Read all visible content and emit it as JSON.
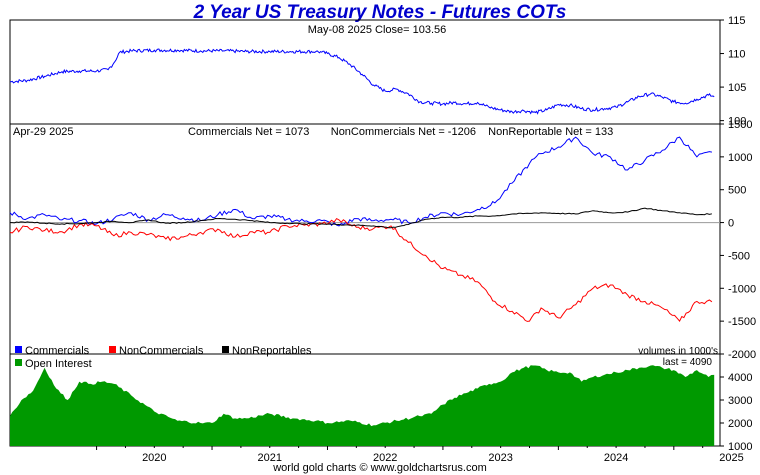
{
  "title": "2 Year US Treasury Notes - Futures COTs",
  "footer": "world gold charts © www.goldchartsrus.com",
  "colors": {
    "title": "#0000cc",
    "price_line": "#0000ff",
    "commercials": "#0000ff",
    "noncommercials": "#ff0000",
    "nonreportables": "#000000",
    "open_interest": "#009900"
  },
  "chart_data": [
    {
      "type": "line",
      "panel": "price",
      "header": "May-08  2025   Close= 103.56",
      "ylim": [
        99.5,
        115
      ],
      "yticks": [
        100,
        105,
        110,
        115
      ],
      "grid": false,
      "x": [
        2019.25,
        2019.4,
        2019.55,
        2019.7,
        2019.85,
        2020.0,
        2020.1,
        2020.15,
        2020.2,
        2020.3,
        2020.5,
        2020.7,
        2020.9,
        2021.1,
        2021.3,
        2021.5,
        2021.7,
        2021.9,
        2021.95,
        2022.0,
        2022.1,
        2022.2,
        2022.3,
        2022.4,
        2022.5,
        2022.6,
        2022.7,
        2022.8,
        2022.9,
        2023.0,
        2023.1,
        2023.2,
        2023.3,
        2023.4,
        2023.5,
        2023.6,
        2023.7,
        2023.8,
        2023.9,
        2024.0,
        2024.1,
        2024.2,
        2024.3,
        2024.4,
        2024.5,
        2024.6,
        2024.7,
        2024.8,
        2024.9,
        2025.0,
        2025.1,
        2025.2,
        2025.3,
        2025.35
      ],
      "values": [
        105.8,
        106.0,
        106.6,
        107.3,
        107.4,
        107.4,
        107.6,
        108.6,
        110.2,
        110.4,
        110.5,
        110.5,
        110.4,
        110.4,
        110.3,
        110.3,
        110.3,
        110.3,
        110.2,
        110.0,
        109.4,
        108.3,
        106.9,
        105.3,
        104.4,
        104.7,
        104.0,
        102.8,
        102.6,
        102.5,
        102.7,
        102.5,
        102.7,
        102.0,
        101.6,
        101.3,
        101.5,
        101.2,
        101.6,
        102.4,
        102.3,
        101.8,
        101.6,
        101.8,
        102.0,
        102.8,
        103.6,
        104.0,
        103.5,
        102.8,
        102.6,
        103.2,
        103.8,
        103.56
      ]
    },
    {
      "type": "line",
      "panel": "net_positions",
      "date_label": "Apr-29  2025",
      "header": "Commercials Net = 1073       NonCommercials Net = -1206    NonReportable Net = 133",
      "volume_note": "volumes in 1000's",
      "ylim": [
        -2000,
        1500
      ],
      "yticks": [
        -2000,
        -1500,
        -1000,
        -500,
        0,
        500,
        1000,
        1500
      ],
      "legend_position": "bottom-left",
      "x": [
        2019.25,
        2019.4,
        2019.55,
        2019.7,
        2019.85,
        2020.0,
        2020.15,
        2020.3,
        2020.45,
        2020.6,
        2020.75,
        2020.9,
        2021.05,
        2021.2,
        2021.35,
        2021.5,
        2021.65,
        2021.8,
        2021.95,
        2022.1,
        2022.25,
        2022.4,
        2022.55,
        2022.7,
        2022.85,
        2023.0,
        2023.15,
        2023.3,
        2023.45,
        2023.6,
        2023.75,
        2023.85,
        2024.0,
        2024.15,
        2024.3,
        2024.45,
        2024.6,
        2024.75,
        2024.9,
        2025.05,
        2025.2,
        2025.33
      ],
      "series": [
        {
          "name": "Commercials",
          "values": [
            150,
            60,
            120,
            40,
            30,
            -20,
            60,
            150,
            40,
            120,
            70,
            30,
            120,
            200,
            60,
            100,
            50,
            20,
            30,
            -50,
            60,
            30,
            50,
            0,
            80,
            150,
            120,
            200,
            300,
            600,
            900,
            1050,
            1150,
            1300,
            1050,
            1000,
            800,
            950,
            1100,
            1300,
            1000,
            1073
          ]
        },
        {
          "name": "NonCommercials",
          "values": [
            -150,
            -60,
            -120,
            -140,
            -30,
            -50,
            -200,
            -150,
            -180,
            -250,
            -220,
            -150,
            -100,
            -220,
            -140,
            -150,
            -50,
            -40,
            -20,
            40,
            -70,
            -90,
            -50,
            -300,
            -500,
            -700,
            -800,
            -900,
            -1200,
            -1350,
            -1500,
            -1300,
            -1450,
            -1250,
            -1000,
            -950,
            -1100,
            -1200,
            -1300,
            -1500,
            -1200,
            -1206
          ]
        },
        {
          "name": "NonReportables",
          "values": [
            0,
            10,
            -10,
            -20,
            -15,
            0,
            20,
            0,
            40,
            -10,
            0,
            30,
            60,
            50,
            30,
            0,
            -10,
            -20,
            -20,
            -30,
            -40,
            -50,
            -80,
            -30,
            50,
            80,
            80,
            100,
            100,
            130,
            140,
            150,
            140,
            130,
            180,
            150,
            160,
            220,
            180,
            150,
            120,
            133
          ]
        }
      ]
    },
    {
      "type": "area",
      "panel": "open_interest",
      "label": "Open Interest",
      "last_label": "last = 4090",
      "ylim": [
        1000,
        5000
      ],
      "yticks": [
        1000,
        2000,
        3000,
        4000
      ],
      "x_tick_labels": [
        "2020",
        "2021",
        "2022",
        "2023",
        "2024",
        "2025"
      ],
      "x": [
        2019.25,
        2019.35,
        2019.45,
        2019.55,
        2019.65,
        2019.75,
        2019.85,
        2019.95,
        2020.05,
        2020.15,
        2020.3,
        2020.5,
        2020.7,
        2020.9,
        2021.0,
        2021.1,
        2021.2,
        2021.3,
        2021.5,
        2021.7,
        2021.9,
        2022.0,
        2022.2,
        2022.4,
        2022.6,
        2022.8,
        2022.9,
        2023.0,
        2023.1,
        2023.2,
        2023.3,
        2023.4,
        2023.5,
        2023.6,
        2023.7,
        2023.8,
        2023.9,
        2024.0,
        2024.1,
        2024.2,
        2024.3,
        2024.4,
        2024.5,
        2024.6,
        2024.7,
        2024.8,
        2024.9,
        2025.0,
        2025.1,
        2025.2,
        2025.3,
        2025.35
      ],
      "values": [
        2300,
        3000,
        3400,
        4400,
        3500,
        3000,
        3800,
        3700,
        3800,
        3700,
        3200,
        2500,
        2100,
        2000,
        2000,
        2400,
        2200,
        2200,
        2400,
        2200,
        2100,
        2000,
        2100,
        1900,
        2100,
        2300,
        2400,
        2800,
        3100,
        3300,
        3500,
        3700,
        3800,
        4200,
        4400,
        4500,
        4300,
        4200,
        4200,
        3800,
        4000,
        4100,
        4200,
        4300,
        4400,
        4500,
        4400,
        4300,
        4000,
        4300,
        4000,
        4090
      ]
    }
  ]
}
